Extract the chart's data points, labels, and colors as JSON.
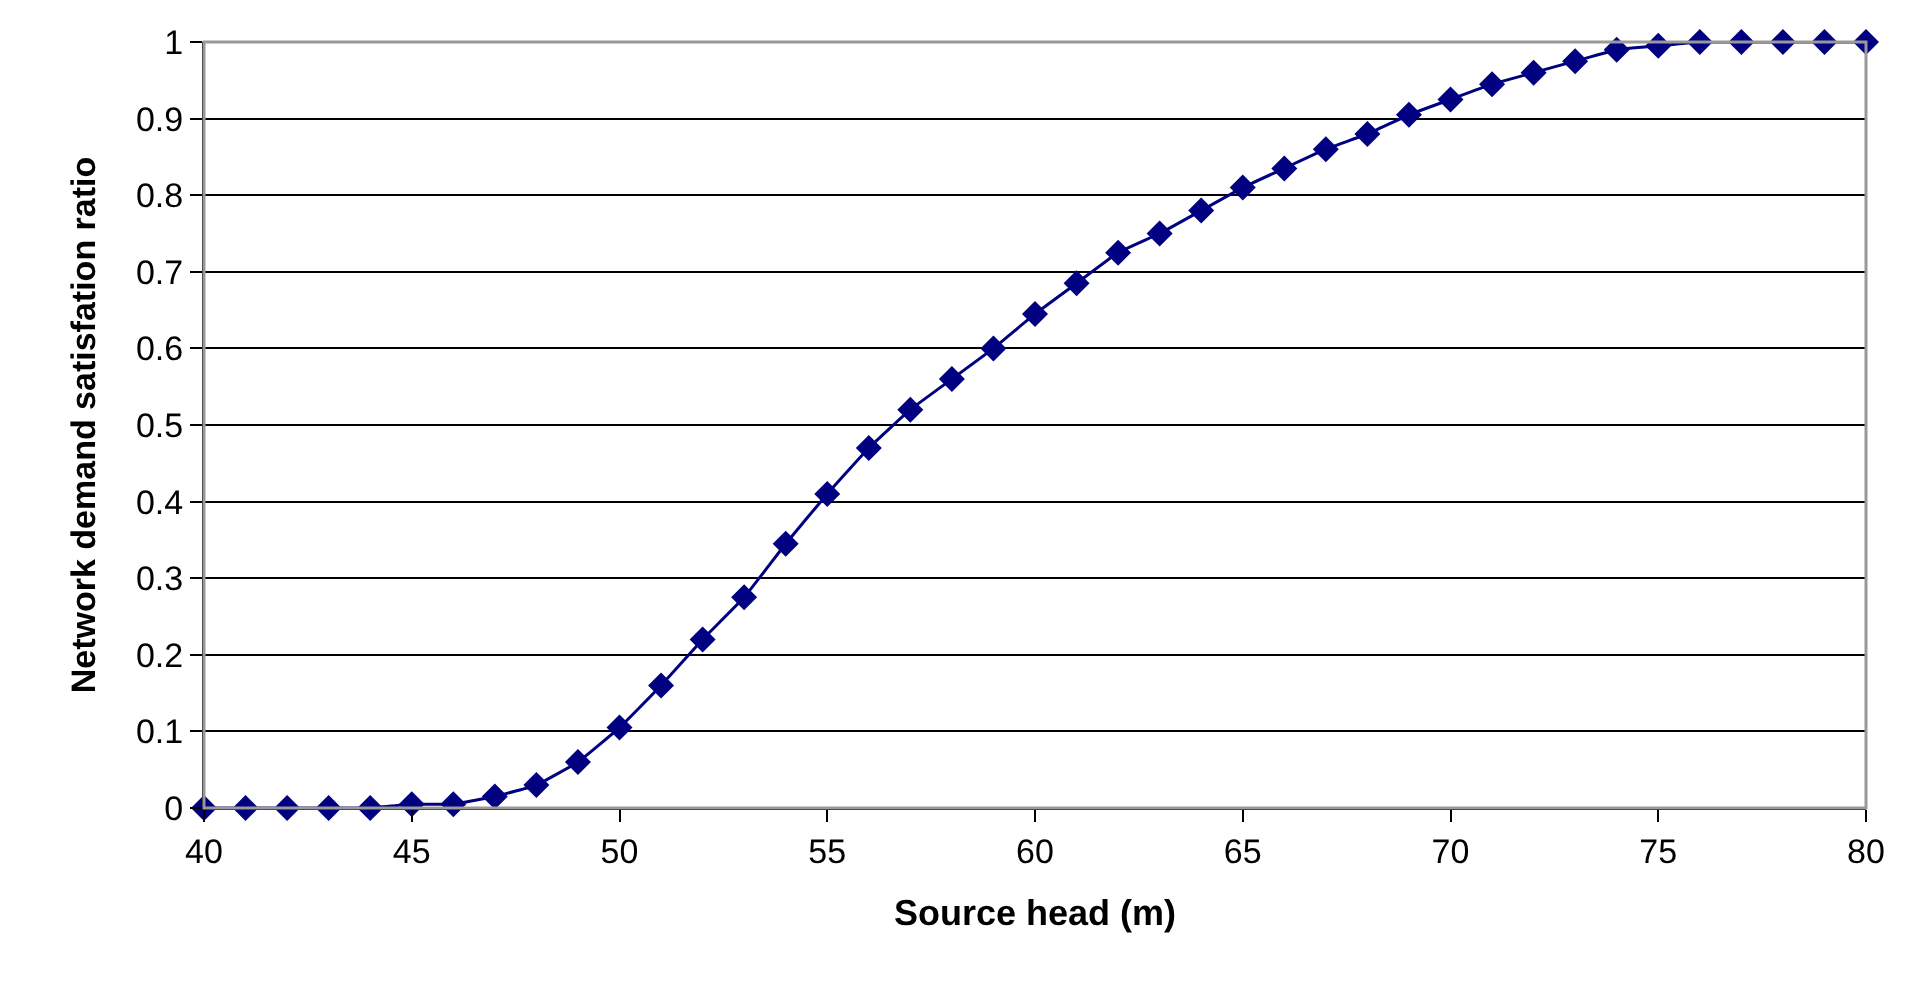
{
  "chart_data": {
    "type": "line",
    "xlabel": "Source head (m)",
    "ylabel": "Network demand satisfation ratio",
    "x": [
      40,
      41,
      42,
      43,
      44,
      45,
      46,
      47,
      48,
      49,
      50,
      51,
      52,
      53,
      54,
      55,
      56,
      57,
      58,
      59,
      60,
      61,
      62,
      63,
      64,
      65,
      66,
      67,
      68,
      69,
      70,
      71,
      72,
      73,
      74,
      75,
      76,
      77,
      78,
      79,
      80
    ],
    "series": [
      {
        "color": "#000080",
        "values": [
          0,
          0,
          0,
          0,
          0,
          0.005,
          0.005,
          0.015,
          0.03,
          0.06,
          0.105,
          0.16,
          0.22,
          0.275,
          0.345,
          0.41,
          0.47,
          0.52,
          0.56,
          0.6,
          0.645,
          0.685,
          0.725,
          0.75,
          0.78,
          0.81,
          0.835,
          0.86,
          0.88,
          0.905,
          0.925,
          0.945,
          0.96,
          0.975,
          0.99,
          0.995,
          1,
          1,
          1,
          1,
          1
        ]
      }
    ],
    "xlim": [
      40,
      80
    ],
    "xticks": [
      40,
      45,
      50,
      55,
      60,
      65,
      70,
      75,
      80
    ],
    "ylim": [
      0,
      1
    ],
    "yticks": [
      0,
      0.1,
      0.2,
      0.3,
      0.4,
      0.5,
      0.6,
      0.7,
      0.8,
      0.9,
      1
    ],
    "grid": "y",
    "marker": "diamond",
    "line_style": "solid",
    "legend": false
  }
}
